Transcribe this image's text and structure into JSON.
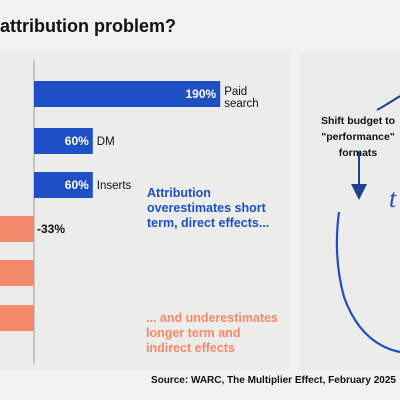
{
  "title": "attribution problem?",
  "colors": {
    "overestimate": "#1f4fc4",
    "underestimate": "#f3896a",
    "background": "#f2f2f0",
    "panel": "#ececea"
  },
  "chart_data": {
    "type": "bar",
    "orientation": "horizontal",
    "categories": [
      "Paid search",
      "DM",
      "Inserts",
      "",
      "",
      ""
    ],
    "values": [
      190,
      60,
      60,
      -33,
      null,
      null
    ],
    "value_labels": [
      "190%",
      "60%",
      "60%",
      "-33%",
      "",
      ""
    ],
    "xlabel": "",
    "ylabel": "",
    "grid": false
  },
  "annotations": {
    "overestimate": "Attribution overestimates short term, direct effects...",
    "underestimate": "... and underestimates longer term and indirect effects"
  },
  "cycle": {
    "label": "Shift budget to \"performance\" formats",
    "glyph": "t"
  },
  "source": "Source: WARC, The Multiplier Effect, February 2025"
}
